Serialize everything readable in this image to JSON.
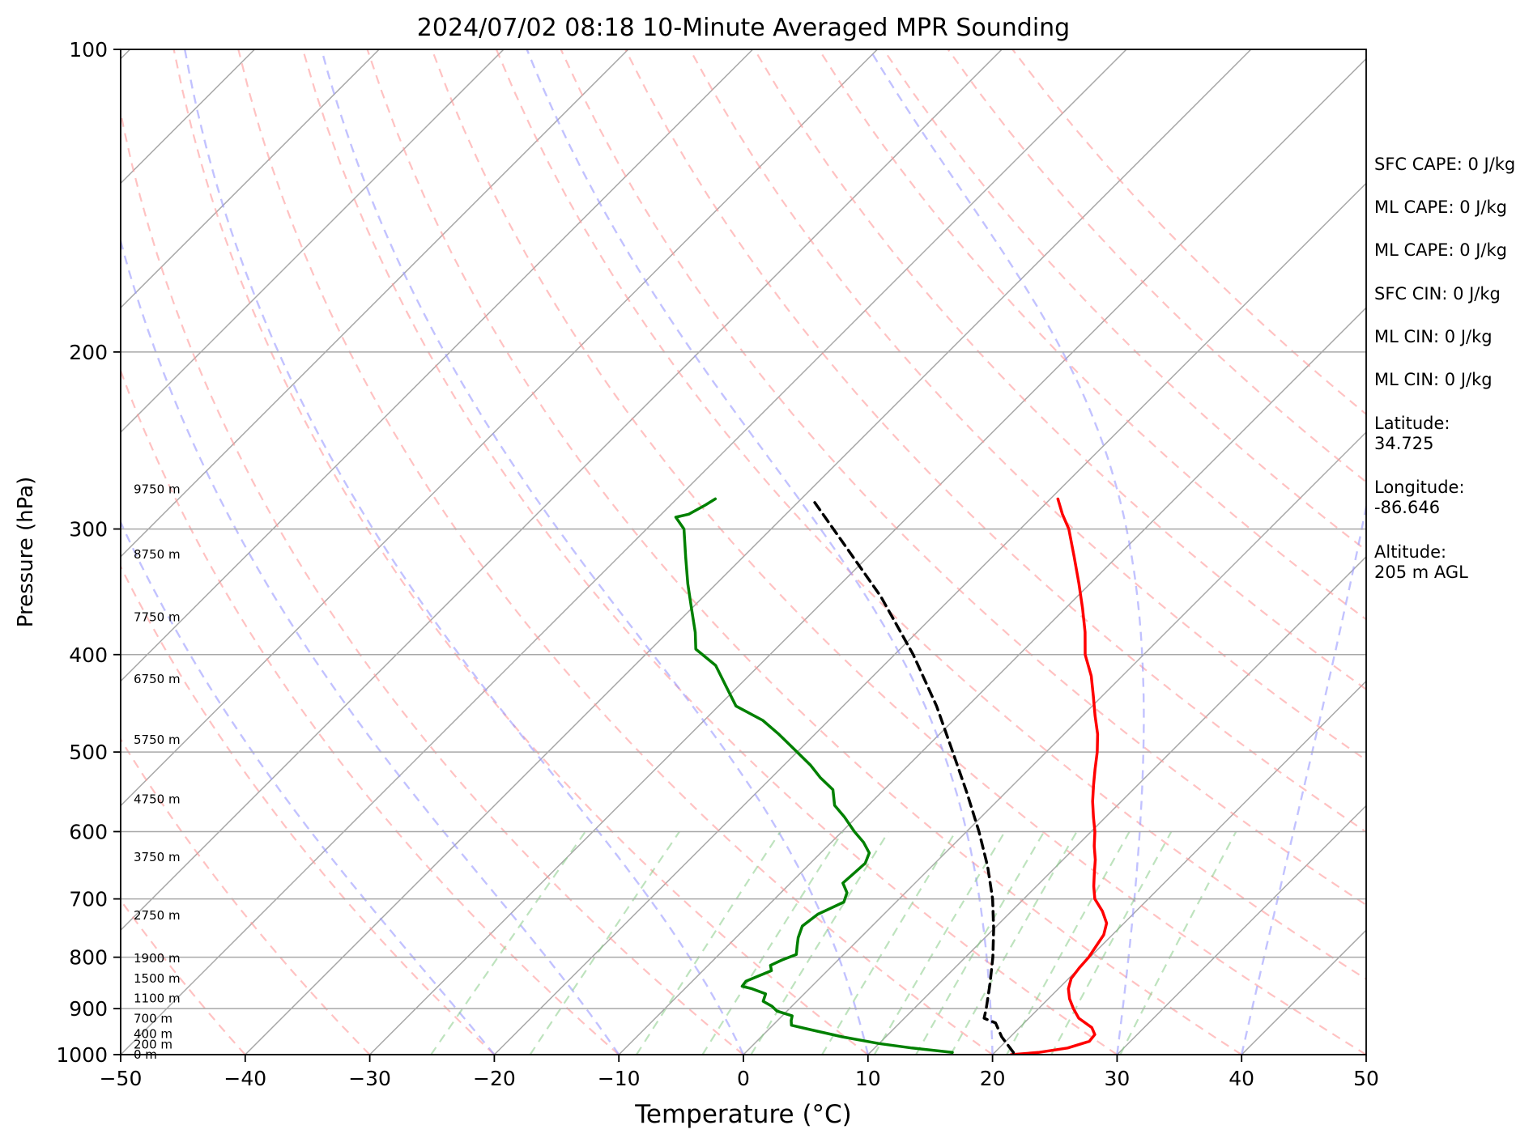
{
  "chart_data": {
    "type": "line",
    "title": "2024/07/02 08:18 10-Minute Averaged MPR Sounding",
    "xlabel": "Temperature (°C)",
    "ylabel": "Pressure (hPa)",
    "xlim": [
      -50,
      50
    ],
    "ylim": [
      1000,
      100
    ],
    "y_scale": "log",
    "skew": "skew-T (isotherms slanted 45°)",
    "grid": true,
    "x_ticks": [
      -50,
      -40,
      -30,
      -20,
      -10,
      0,
      10,
      20,
      30,
      40,
      50
    ],
    "x_tick_labels": [
      "−50",
      "−40",
      "−30",
      "−20",
      "−10",
      "0",
      "10",
      "20",
      "30",
      "40",
      "50"
    ],
    "y_ticks": [
      1000,
      900,
      800,
      700,
      600,
      500,
      400,
      300,
      200,
      100
    ],
    "y_tick_labels": [
      "1000",
      "900",
      "800",
      "700",
      "600",
      "500",
      "400",
      "300",
      "200",
      "100"
    ],
    "height_labels": [
      {
        "p": 1000,
        "text": "0 m"
      },
      {
        "p": 977,
        "text": "200 m"
      },
      {
        "p": 954,
        "text": "400 m"
      },
      {
        "p": 921,
        "text": "700 m"
      },
      {
        "p": 879,
        "text": "1100 m"
      },
      {
        "p": 840,
        "text": "1500 m"
      },
      {
        "p": 802,
        "text": "1900 m"
      },
      {
        "p": 727,
        "text": "2750 m"
      },
      {
        "p": 636,
        "text": "3750 m"
      },
      {
        "p": 557,
        "text": "4750 m"
      },
      {
        "p": 486,
        "text": "5750 m"
      },
      {
        "p": 423,
        "text": "6750 m"
      },
      {
        "p": 367,
        "text": "7750 m"
      },
      {
        "p": 318,
        "text": "8750 m"
      },
      {
        "p": 274,
        "text": "9750 m"
      }
    ],
    "series": [
      {
        "color": "#ff0000",
        "style": "solid",
        "points": [
          [
            1000,
            21.5
          ],
          [
            995,
            23.5
          ],
          [
            985,
            25.5
          ],
          [
            970,
            26.7
          ],
          [
            955,
            26.6
          ],
          [
            940,
            25.8
          ],
          [
            920,
            24.0
          ],
          [
            900,
            22.8
          ],
          [
            880,
            21.7
          ],
          [
            860,
            20.8
          ],
          [
            840,
            20.2
          ],
          [
            820,
            20.0
          ],
          [
            800,
            19.9
          ],
          [
            780,
            19.6
          ],
          [
            760,
            19.3
          ],
          [
            740,
            18.6
          ],
          [
            720,
            17.3
          ],
          [
            700,
            15.7
          ],
          [
            680,
            14.6
          ],
          [
            660,
            13.6
          ],
          [
            640,
            12.6
          ],
          [
            620,
            11.4
          ],
          [
            600,
            10.3
          ],
          [
            580,
            9.0
          ],
          [
            560,
            7.7
          ],
          [
            540,
            6.5
          ],
          [
            520,
            5.3
          ],
          [
            500,
            4.1
          ],
          [
            480,
            2.7
          ],
          [
            460,
            1.0
          ],
          [
            440,
            -0.7
          ],
          [
            420,
            -2.5
          ],
          [
            400,
            -4.7
          ],
          [
            380,
            -6.5
          ],
          [
            360,
            -8.6
          ],
          [
            340,
            -10.9
          ],
          [
            320,
            -13.4
          ],
          [
            300,
            -16.1
          ],
          [
            290,
            -17.8
          ],
          [
            280,
            -19.4
          ]
        ]
      },
      {
        "color": "#008000",
        "style": "solid",
        "points": [
          [
            995,
            16.6
          ],
          [
            985,
            13.0
          ],
          [
            975,
            10.0
          ],
          [
            960,
            6.5
          ],
          [
            945,
            3.5
          ],
          [
            935,
            1.5
          ],
          [
            925,
            1.1
          ],
          [
            915,
            0.8
          ],
          [
            905,
            -0.8
          ],
          [
            895,
            -1.6
          ],
          [
            885,
            -2.7
          ],
          [
            870,
            -3.1
          ],
          [
            860,
            -4.6
          ],
          [
            855,
            -5.6
          ],
          [
            845,
            -5.7
          ],
          [
            835,
            -5.1
          ],
          [
            825,
            -4.5
          ],
          [
            815,
            -5.0
          ],
          [
            805,
            -4.5
          ],
          [
            795,
            -3.8
          ],
          [
            780,
            -4.4
          ],
          [
            765,
            -5.0
          ],
          [
            745,
            -5.6
          ],
          [
            725,
            -5.3
          ],
          [
            705,
            -4.2
          ],
          [
            690,
            -4.7
          ],
          [
            675,
            -5.8
          ],
          [
            660,
            -5.7
          ],
          [
            645,
            -5.6
          ],
          [
            630,
            -6.1
          ],
          [
            615,
            -7.4
          ],
          [
            600,
            -9.0
          ],
          [
            580,
            -11.0
          ],
          [
            565,
            -12.7
          ],
          [
            545,
            -14.1
          ],
          [
            530,
            -16.1
          ],
          [
            515,
            -17.9
          ],
          [
            500,
            -20.0
          ],
          [
            480,
            -22.9
          ],
          [
            465,
            -25.3
          ],
          [
            450,
            -28.6
          ],
          [
            430,
            -31.0
          ],
          [
            410,
            -33.5
          ],
          [
            395,
            -36.4
          ],
          [
            380,
            -37.8
          ],
          [
            360,
            -40.0
          ],
          [
            340,
            -42.3
          ],
          [
            320,
            -44.6
          ],
          [
            300,
            -47.0
          ],
          [
            292,
            -48.6
          ],
          [
            290,
            -47.8
          ],
          [
            284,
            -47.2
          ],
          [
            280,
            -46.9
          ]
        ]
      },
      {
        "color": "#000000",
        "style": "dashed",
        "points": [
          [
            995,
            21.5
          ],
          [
            960,
            19.3
          ],
          [
            930,
            17.7
          ],
          [
            920,
            16.4
          ],
          [
            900,
            15.8
          ],
          [
            850,
            14.1
          ],
          [
            800,
            12.2
          ],
          [
            750,
            10.0
          ],
          [
            700,
            7.5
          ],
          [
            650,
            4.5
          ],
          [
            600,
            1.0
          ],
          [
            550,
            -3.0
          ],
          [
            500,
            -7.5
          ],
          [
            450,
            -12.5
          ],
          [
            400,
            -18.5
          ],
          [
            350,
            -25.8
          ],
          [
            300,
            -35.0
          ],
          [
            282,
            -38.7
          ]
        ]
      }
    ],
    "dry_adiabat_thetas_c": [
      -40,
      -30,
      -20,
      -10,
      0,
      10,
      20,
      30,
      40,
      50,
      60,
      70,
      80,
      90,
      100,
      110,
      120,
      130,
      140
    ],
    "moist_adiabat_surface_temps_c": [
      -20,
      -10,
      0,
      10,
      20,
      30,
      40,
      50
    ],
    "mixing_ratio_lines_gkg": [
      0.5,
      1,
      2,
      3,
      4,
      6,
      8,
      10,
      12,
      16,
      20,
      28
    ]
  },
  "info_panel": [
    "SFC CAPE: 0 J/kg",
    "ML CAPE: 0 J/kg",
    "ML CAPE: 0 J/kg",
    "SFC CIN: 0 J/kg",
    "ML CIN: 0 J/kg",
    "ML CIN: 0 J/kg",
    "Latitude:\n34.725",
    "Longitude:\n-86.646",
    "Altitude:\n205 m AGL"
  ]
}
